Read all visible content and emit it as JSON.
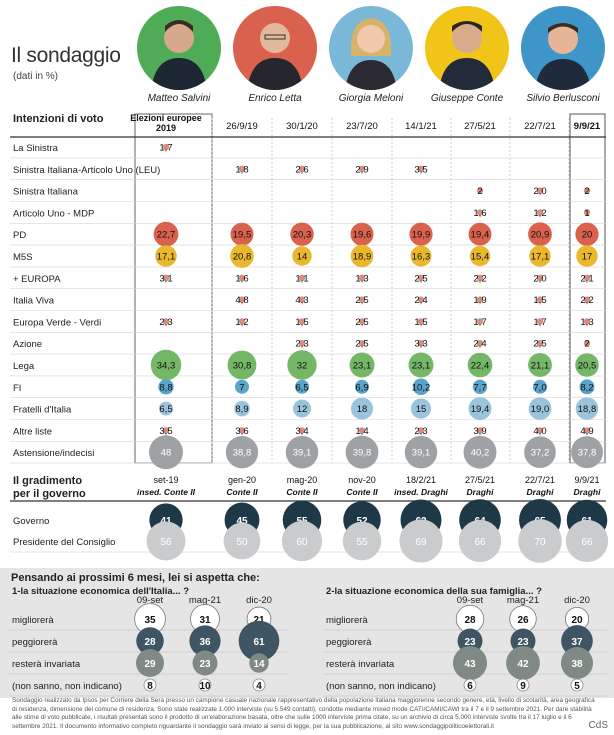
{
  "header": {
    "title": "Il sondaggio",
    "subtitle": "(dati in %)"
  },
  "leaders": [
    {
      "name": "Matteo Salvini",
      "bg": "#4fab55"
    },
    {
      "name": "Enrico Letta",
      "bg": "#d9614e"
    },
    {
      "name": "Giorgia Meloni",
      "bg": "#7ab8d8"
    },
    {
      "name": "Giuseppe Conte",
      "bg": "#f0c419"
    },
    {
      "name": "Silvio Berlusconi",
      "bg": "#3e96c8"
    }
  ],
  "colors": {
    "pd": "#d9614e",
    "m5s": "#e9b82d",
    "lega": "#74b766",
    "fi": "#5aa4c9",
    "fdi": "#99c4dc",
    "gray": "#9ea2a5",
    "navy": "#1f3848",
    "light": "#c9cbcd",
    "small_dot": "#d98d7f"
  },
  "chart_data": [
    {
      "type": "table",
      "title": "Intenzioni di voto",
      "columns": [
        "Elezioni europee 2019",
        "26/9/19",
        "30/1/20",
        "23/7/20",
        "14/1/21",
        "27/5/21",
        "22/7/21",
        "9/9/21"
      ],
      "rows": [
        {
          "label": "La Sinistra",
          "values": [
            "1,7",
            "",
            "",
            "",
            "",
            "",
            "",
            ""
          ]
        },
        {
          "label": "Sinistra Italiana-Articolo Uno (LEU)",
          "values": [
            "",
            "1,8",
            "2,6",
            "2,9",
            "3,5",
            "",
            "",
            ""
          ]
        },
        {
          "label": "Sinistra Italiana",
          "values": [
            "",
            "",
            "",
            "",
            "",
            "2",
            "2,0",
            "2"
          ]
        },
        {
          "label": "Articolo Uno - MDP",
          "values": [
            "",
            "",
            "",
            "",
            "",
            "1,6",
            "1,2",
            "1"
          ]
        },
        {
          "label": "PD",
          "values": [
            "22,7",
            "19,5",
            "20,3",
            "19,6",
            "19,9",
            "19,4",
            "20,9",
            "20"
          ]
        },
        {
          "label": "M5S",
          "values": [
            "17,1",
            "20,8",
            "14",
            "18,9",
            "16,3",
            "15,4",
            "17,1",
            "17"
          ]
        },
        {
          "label": "+ EUROPA",
          "values": [
            "3,1",
            "1,6",
            "1,1",
            "1,3",
            "2,5",
            "2,2",
            "2,0",
            "2,1"
          ]
        },
        {
          "label": "Italia Viva",
          "values": [
            "",
            "4,8",
            "4,3",
            "2,5",
            "2,4",
            "1,9",
            "1,5",
            "2,2"
          ]
        },
        {
          "label": "Europa Verde - Verdi",
          "values": [
            "2,3",
            "1,2",
            "1,5",
            "2,5",
            "1,5",
            "1,7",
            "1,7",
            "1,3"
          ]
        },
        {
          "label": "Azione",
          "values": [
            "",
            "",
            "2,3",
            "2,5",
            "3,3",
            "2,4",
            "2,5",
            "2"
          ]
        },
        {
          "label": "Lega",
          "values": [
            "34,3",
            "30,8",
            "32",
            "23,1",
            "23,1",
            "22,4",
            "21,1",
            "20,5"
          ]
        },
        {
          "label": "FI",
          "values": [
            "8,8",
            "7",
            "6,5",
            "6,9",
            "10,2",
            "7,7",
            "7,0",
            "8,2"
          ]
        },
        {
          "label": "Fratelli d'Italia",
          "values": [
            "6,5",
            "8,9",
            "12",
            "18",
            "15",
            "19,4",
            "19,0",
            "18,8"
          ]
        },
        {
          "label": "Altre liste",
          "values": [
            "3,5",
            "3,6",
            "3,4",
            "1,4",
            "2,3",
            "3,9",
            "4,0",
            "4,9"
          ]
        },
        {
          "label": "Astensione/indecisi",
          "values": [
            "48",
            "38,8",
            "39,1",
            "39,8",
            "39,1",
            "40,2",
            "37,2",
            "37,8"
          ]
        }
      ]
    },
    {
      "type": "table",
      "title": "Il gradimento per il governo",
      "columns": [
        {
          "date": "set-19",
          "gov": "insed. Conte II"
        },
        {
          "date": "gen-20",
          "gov": "Conte II"
        },
        {
          "date": "mag-20",
          "gov": "Conte II"
        },
        {
          "date": "nov-20",
          "gov": "Conte II"
        },
        {
          "date": "18/2/21",
          "gov": "insed. Draghi"
        },
        {
          "date": "27/5/21",
          "gov": "Draghi"
        },
        {
          "date": "22/7/21",
          "gov": "Draghi"
        },
        {
          "date": "9/9/21",
          "gov": "Draghi"
        }
      ],
      "rows": [
        {
          "label": "Governo",
          "values": [
            "41",
            "45",
            "55",
            "52",
            "62",
            "64",
            "65",
            "61"
          ]
        },
        {
          "label": "Presidente del Consiglio",
          "values": [
            "56",
            "50",
            "60",
            "55",
            "69",
            "66",
            "70",
            "66"
          ]
        }
      ]
    },
    {
      "type": "table",
      "title": "1-la situazione economica dell'Italia... ?",
      "columns": [
        "09-set",
        "mag-21",
        "dic-20"
      ],
      "rows": [
        {
          "label": "migliorerà",
          "values": [
            "35",
            "31",
            "21"
          ]
        },
        {
          "label": "peggiorerà",
          "values": [
            "28",
            "36",
            "61"
          ]
        },
        {
          "label": "resterà invariata",
          "values": [
            "29",
            "23",
            "14"
          ]
        },
        {
          "label": "(non sanno, non indicano)",
          "values": [
            "8",
            "10",
            "4"
          ]
        }
      ]
    },
    {
      "type": "table",
      "title": "2-la situazione economica della sua famiglia... ?",
      "columns": [
        "09-set",
        "mag-21",
        "dic-20"
      ],
      "rows": [
        {
          "label": "migliorerà",
          "values": [
            "28",
            "26",
            "20"
          ]
        },
        {
          "label": "peggiorerà",
          "values": [
            "23",
            "23",
            "37"
          ]
        },
        {
          "label": "resterà invariata",
          "values": [
            "43",
            "42",
            "38"
          ]
        },
        {
          "label": "(non sanno, non indicano)",
          "values": [
            "6",
            "9",
            "5"
          ]
        }
      ]
    }
  ],
  "bottom": {
    "heading": "Pensando ai prossimi 6 mesi, lei si aspetta che:"
  },
  "footnote": "Sondaggio realizzato da Ipsos per Corriere della Sera presso un campione casuale nazionale rappresentativo della popolazione italiana maggiorenne secondo genere, età, livello di scolarità, area geografica di residenza, dimensione del comune di residenza. Sono state realizzate 1.000 interviste (su 5.549 contatti), condotte mediante mixed mode CATI/CAMI/CAWI tra il 7 e il 9 settembre 2021. Per dare stabilità alle stime di voto pubblicate, i risultati presentati sono il prodotto di un'elaborazione basata, oltre che sulle 1000 interviste prima citate, su un archivio di circa 5.000 interviste svolte tra il 17 luglio e il 6 settembre 2021. Il documento informativo completo riguardante il sondaggio sarà inviato ai sensi di legge, per la sua pubblicazione, al sito www.sondaggipoliticoelettorali.it",
  "credit": "CdS"
}
